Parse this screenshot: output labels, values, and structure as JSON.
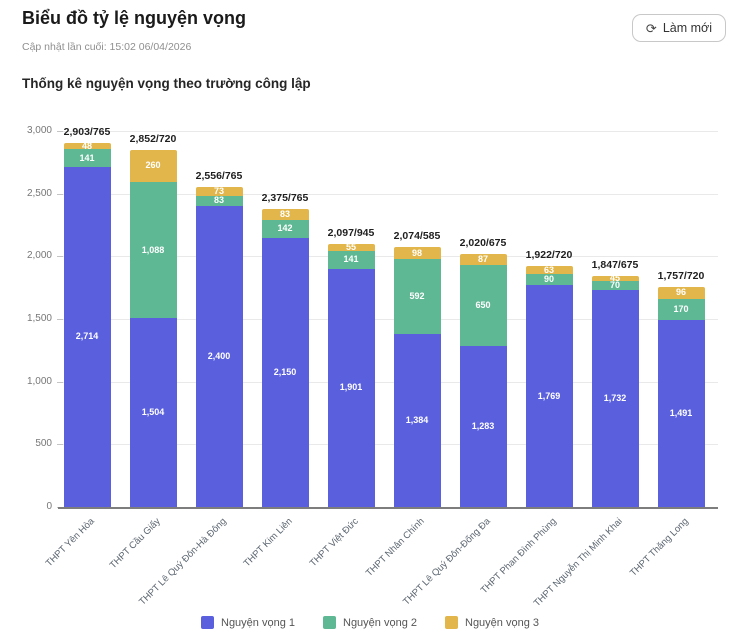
{
  "header": {
    "title": "Biểu đồ tỷ lệ nguyện vọng",
    "subtitle": "Cập nhật lần cuối: 15:02 06/04/2026",
    "refresh_button": {
      "label": "Làm mới",
      "icon": "⟳"
    }
  },
  "section": {
    "title": "Thống kê nguyện vọng theo trường công lập"
  },
  "chart_data": {
    "type": "bar",
    "stacked": true,
    "title": "Thống kê nguyện vọng theo trường công lập",
    "categories": [
      "THPT Yên Hòa",
      "THPT Cầu Giấy",
      "THPT Lê Quý Đôn-Hà Đông",
      "THPT Kim Liên",
      "THPT Việt Đức",
      "THPT Nhân Chính",
      "THPT Lê Quý Đôn-Đống Đa",
      "THPT Phan Đình Phùng",
      "THPT Nguyễn Thị Minh Khai",
      "THPT Thăng Long"
    ],
    "series": [
      {
        "name": "Nguyện vọng 1",
        "color": "#5a5fde",
        "values": [
          2714,
          1504,
          2400,
          2150,
          1901,
          1384,
          1283,
          1769,
          1732,
          1491
        ]
      },
      {
        "name": "Nguyện vọng 2",
        "color": "#5fb894",
        "values": [
          141,
          1088,
          83,
          142,
          141,
          592,
          650,
          90,
          70,
          170
        ]
      },
      {
        "name": "Nguyện vọng 3",
        "color": "#e2b64a",
        "values": [
          48,
          260,
          73,
          83,
          55,
          98,
          87,
          63,
          45,
          96
        ]
      }
    ],
    "totals": [
      "2,903/765",
      "2,852/720",
      "2,556/765",
      "2,375/765",
      "2,097/945",
      "2,074/585",
      "2,020/675",
      "1,922/720",
      "1,847/675",
      "1,757/720"
    ],
    "ylim": [
      0,
      3000
    ],
    "yticks": [
      0,
      500,
      1000,
      1500,
      2000,
      2500,
      3000
    ],
    "grid": true,
    "legend_position": "bottom",
    "colors": {
      "grid": "#e9e9e9",
      "axis_line": "#7d7d7d",
      "y_tick_text": "#777777",
      "x_tick_text": "#5b6570",
      "total_label_text": "#1f1f1f",
      "segment_label_text": "#ffffff"
    }
  }
}
